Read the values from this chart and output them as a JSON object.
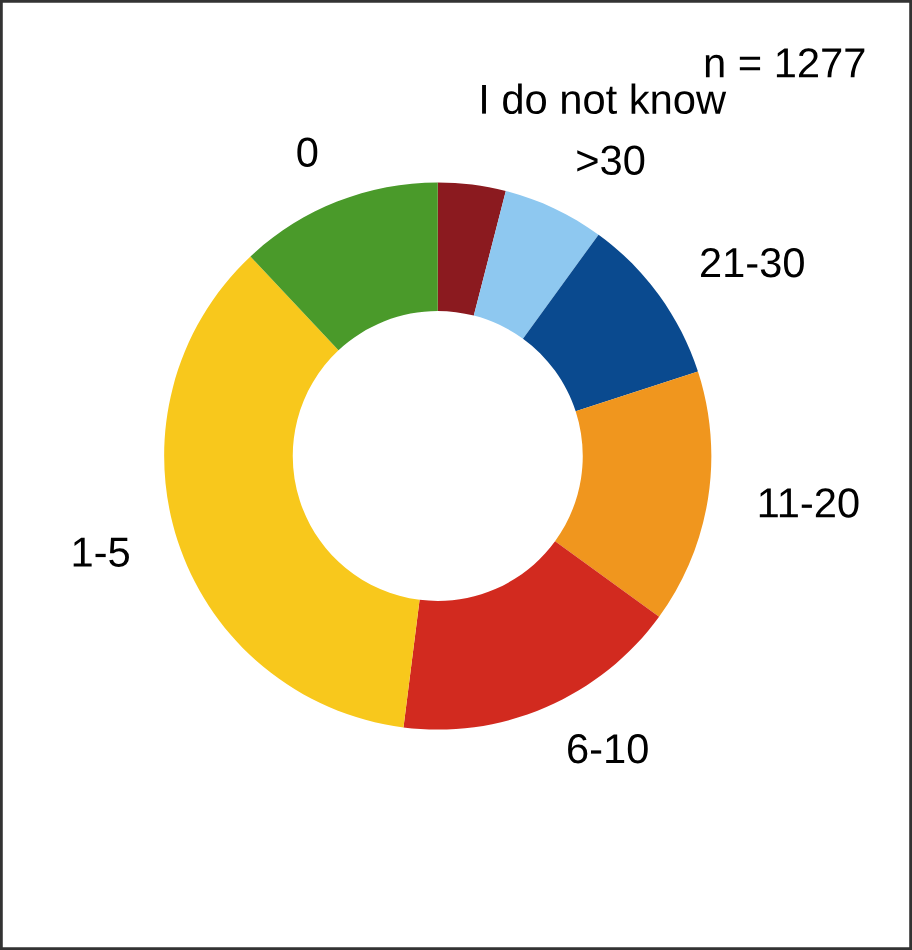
{
  "chart_data": {
    "type": "donut",
    "annotations": [
      "n = 1277"
    ],
    "categories": [
      "I do not know",
      ">30",
      "21-30",
      "11-20",
      "6-10",
      "1-5",
      "0"
    ],
    "values": [
      4,
      6,
      10,
      15,
      17,
      36,
      12
    ],
    "colors": [
      "#8b1a1f",
      "#8ec8f0",
      "#0a4a8f",
      "#f0961e",
      "#d22a1f",
      "#f8c81c",
      "#4a9a2a"
    ]
  }
}
